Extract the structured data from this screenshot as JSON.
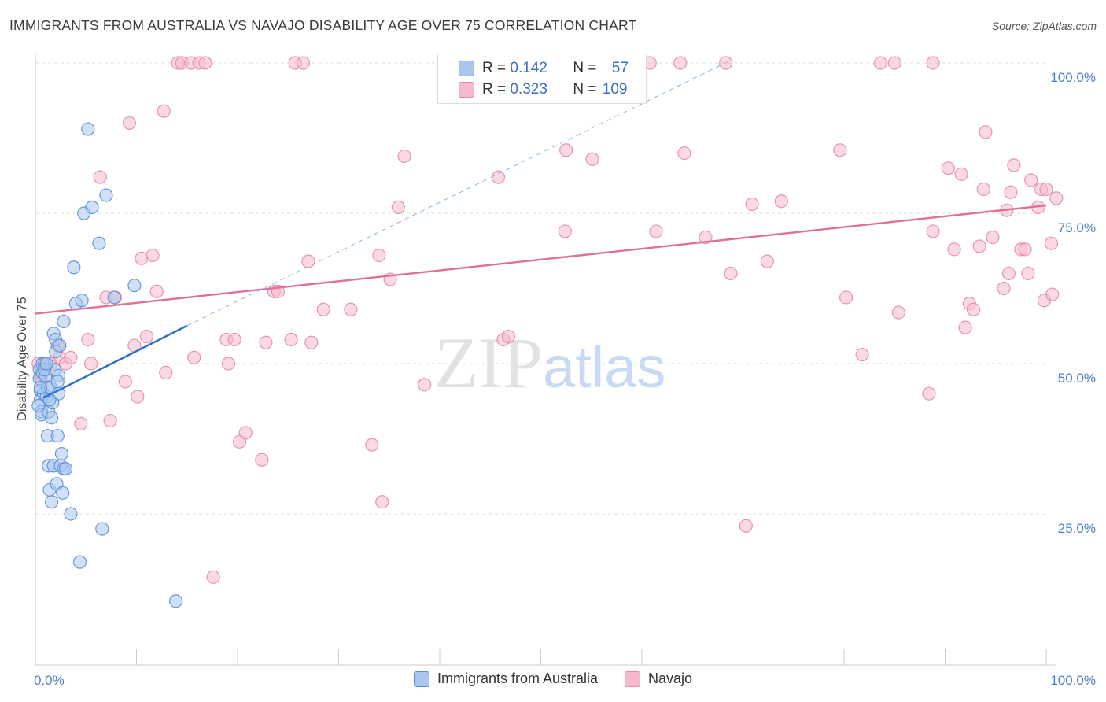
{
  "header": {
    "title": "IMMIGRANTS FROM AUSTRALIA VS NAVAJO DISABILITY AGE OVER 75 CORRELATION CHART",
    "source": "Source: ZipAtlas.com"
  },
  "watermark": {
    "zip": "ZIP",
    "atlas": "atlas"
  },
  "legend": {
    "rows": [
      {
        "r_label": "R = ",
        "r_value": "0.142",
        "n_label": "N = ",
        "n_value": "57"
      },
      {
        "r_label": "R = ",
        "r_value": "0.323",
        "n_label": "N = ",
        "n_value": "109"
      }
    ]
  },
  "bottom_legend": {
    "items": [
      {
        "label": "Immigrants from Australia"
      },
      {
        "label": "Navajo"
      }
    ]
  },
  "colors": {
    "blue_fill": "#a9c7ee",
    "blue_stroke": "#5b8fd6",
    "blue_line": "#2b6fd1",
    "pink_fill": "#f5b9cb",
    "pink_stroke": "#e68aa8",
    "pink_line": "#e0709a",
    "tick_text": "#4a7fd0"
  },
  "chart_data": {
    "type": "scatter",
    "title": "IMMIGRANTS FROM AUSTRALIA VS NAVAJO DISABILITY AGE OVER 75 CORRELATION CHART",
    "xlabel": "",
    "ylabel": "Disability Age Over 75",
    "xlim": [
      0,
      100
    ],
    "ylim": [
      0,
      102
    ],
    "x_tick_labels": [
      "0.0%",
      "100.0%"
    ],
    "y_ticks": [
      25,
      50,
      75,
      100
    ],
    "y_tick_labels": [
      "25.0%",
      "50.0%",
      "75.0%",
      "100.0%"
    ],
    "grid": true,
    "legend_position": "top-center",
    "series": [
      {
        "name": "Immigrants from Australia",
        "color": "#5b8fd6",
        "points": [
          [
            0.4,
            49
          ],
          [
            0.4,
            47.5
          ],
          [
            0.5,
            45.5
          ],
          [
            0.5,
            44
          ],
          [
            0.6,
            42
          ],
          [
            0.6,
            41.5
          ],
          [
            0.7,
            50
          ],
          [
            0.7,
            48.5
          ],
          [
            0.8,
            45
          ],
          [
            0.9,
            50
          ],
          [
            1.0,
            48
          ],
          [
            1.1,
            44.5
          ],
          [
            1.2,
            46
          ],
          [
            1.2,
            38
          ],
          [
            1.3,
            42
          ],
          [
            1.3,
            33
          ],
          [
            1.4,
            29
          ],
          [
            1.5,
            46
          ],
          [
            1.6,
            41
          ],
          [
            1.6,
            27
          ],
          [
            1.7,
            43.5
          ],
          [
            1.8,
            33
          ],
          [
            1.8,
            55
          ],
          [
            1.9,
            49
          ],
          [
            2.0,
            52
          ],
          [
            2.0,
            54
          ],
          [
            2.1,
            30
          ],
          [
            2.2,
            38
          ],
          [
            2.3,
            45
          ],
          [
            2.3,
            48
          ],
          [
            2.4,
            53
          ],
          [
            2.5,
            33
          ],
          [
            2.6,
            35
          ],
          [
            2.7,
            28.5
          ],
          [
            2.8,
            32.5
          ],
          [
            2.8,
            57
          ],
          [
            3.0,
            32.5
          ],
          [
            3.5,
            25
          ],
          [
            3.8,
            66
          ],
          [
            4.0,
            60
          ],
          [
            4.4,
            17
          ],
          [
            4.6,
            60.5
          ],
          [
            4.8,
            75
          ],
          [
            5.2,
            89
          ],
          [
            5.6,
            76
          ],
          [
            6.3,
            70
          ],
          [
            6.6,
            22.5
          ],
          [
            7.0,
            78
          ],
          [
            7.8,
            61
          ],
          [
            9.8,
            63
          ],
          [
            13.9,
            10.5
          ],
          [
            0.3,
            43
          ],
          [
            0.5,
            46
          ],
          [
            0.9,
            49
          ],
          [
            1.1,
            50
          ],
          [
            1.4,
            44
          ],
          [
            2.2,
            47
          ]
        ],
        "trend": {
          "x": [
            0.8,
            15
          ],
          "y": [
            44.3,
            56.3
          ]
        },
        "trend_extension": {
          "x": [
            15,
            68.5
          ],
          "y": [
            56.3,
            100.2
          ]
        }
      },
      {
        "name": "Navajo",
        "color": "#e68aa8",
        "points": [
          [
            0.3,
            50
          ],
          [
            0.5,
            48
          ],
          [
            1.0,
            49.5
          ],
          [
            1.5,
            50
          ],
          [
            2.2,
            53
          ],
          [
            2.4,
            51
          ],
          [
            3.0,
            50
          ],
          [
            3.5,
            51
          ],
          [
            4.5,
            40
          ],
          [
            5.2,
            54
          ],
          [
            5.5,
            50
          ],
          [
            6.4,
            81
          ],
          [
            7.4,
            40.5
          ],
          [
            7.0,
            61
          ],
          [
            7.9,
            61
          ],
          [
            8.9,
            47
          ],
          [
            9.3,
            90
          ],
          [
            9.8,
            53
          ],
          [
            10.1,
            44.5
          ],
          [
            10.5,
            67.5
          ],
          [
            11.0,
            54.5
          ],
          [
            11.6,
            68
          ],
          [
            12.0,
            62
          ],
          [
            12.7,
            92
          ],
          [
            12.9,
            48.5
          ],
          [
            14.1,
            100
          ],
          [
            14.5,
            100
          ],
          [
            15.4,
            100
          ],
          [
            15.7,
            51
          ],
          [
            16.2,
            100
          ],
          [
            16.8,
            100
          ],
          [
            17.6,
            14.5
          ],
          [
            18.9,
            54
          ],
          [
            19.1,
            50
          ],
          [
            19.7,
            54
          ],
          [
            20.2,
            37
          ],
          [
            20.8,
            38.5
          ],
          [
            22.4,
            34
          ],
          [
            22.8,
            53.5
          ],
          [
            23.6,
            62
          ],
          [
            24.0,
            62
          ],
          [
            25.3,
            54
          ],
          [
            25.7,
            100
          ],
          [
            26.5,
            100
          ],
          [
            27.0,
            67
          ],
          [
            27.3,
            53.5
          ],
          [
            28.5,
            59
          ],
          [
            31.2,
            59
          ],
          [
            33.3,
            36.5
          ],
          [
            34.0,
            68
          ],
          [
            34.3,
            27
          ],
          [
            35.1,
            64
          ],
          [
            35.9,
            76
          ],
          [
            36.5,
            84.5
          ],
          [
            38.5,
            46.5
          ],
          [
            46.3,
            54
          ],
          [
            46.8,
            54.5
          ],
          [
            45.8,
            81
          ],
          [
            51.3,
            100
          ],
          [
            52.5,
            85.5
          ],
          [
            52.4,
            72
          ],
          [
            55.1,
            84
          ],
          [
            60.8,
            100
          ],
          [
            61.4,
            72
          ],
          [
            63.8,
            100
          ],
          [
            64.2,
            85
          ],
          [
            66.3,
            71
          ],
          [
            68.3,
            100
          ],
          [
            68.8,
            65
          ],
          [
            70.3,
            23
          ],
          [
            70.9,
            76.5
          ],
          [
            72.4,
            67
          ],
          [
            73.8,
            77
          ],
          [
            79.6,
            85.5
          ],
          [
            80.2,
            61
          ],
          [
            81.8,
            51.5
          ],
          [
            83.6,
            100
          ],
          [
            85.0,
            100
          ],
          [
            85.4,
            58.5
          ],
          [
            88.4,
            45
          ],
          [
            88.8,
            100
          ],
          [
            88.8,
            72
          ],
          [
            90.3,
            82.5
          ],
          [
            90.9,
            69
          ],
          [
            91.6,
            81.5
          ],
          [
            92.0,
            56
          ],
          [
            92.4,
            60
          ],
          [
            92.8,
            59
          ],
          [
            93.4,
            69.5
          ],
          [
            93.8,
            79
          ],
          [
            94.0,
            88.5
          ],
          [
            94.7,
            71
          ],
          [
            95.8,
            62.5
          ],
          [
            96.1,
            75.5
          ],
          [
            96.3,
            65
          ],
          [
            96.5,
            78.5
          ],
          [
            96.8,
            83
          ],
          [
            97.5,
            69
          ],
          [
            97.9,
            69
          ],
          [
            98.2,
            65
          ],
          [
            98.5,
            80.5
          ],
          [
            99.2,
            76
          ],
          [
            99.5,
            79
          ],
          [
            99.8,
            60.5
          ],
          [
            100.0,
            79
          ],
          [
            100.5,
            70
          ],
          [
            100.6,
            61.5
          ],
          [
            101.0,
            77.5
          ],
          [
            0.6,
            47
          ]
        ],
        "trend": {
          "x": [
            0,
            100
          ],
          "y": [
            58.3,
            76.3
          ]
        }
      }
    ]
  }
}
